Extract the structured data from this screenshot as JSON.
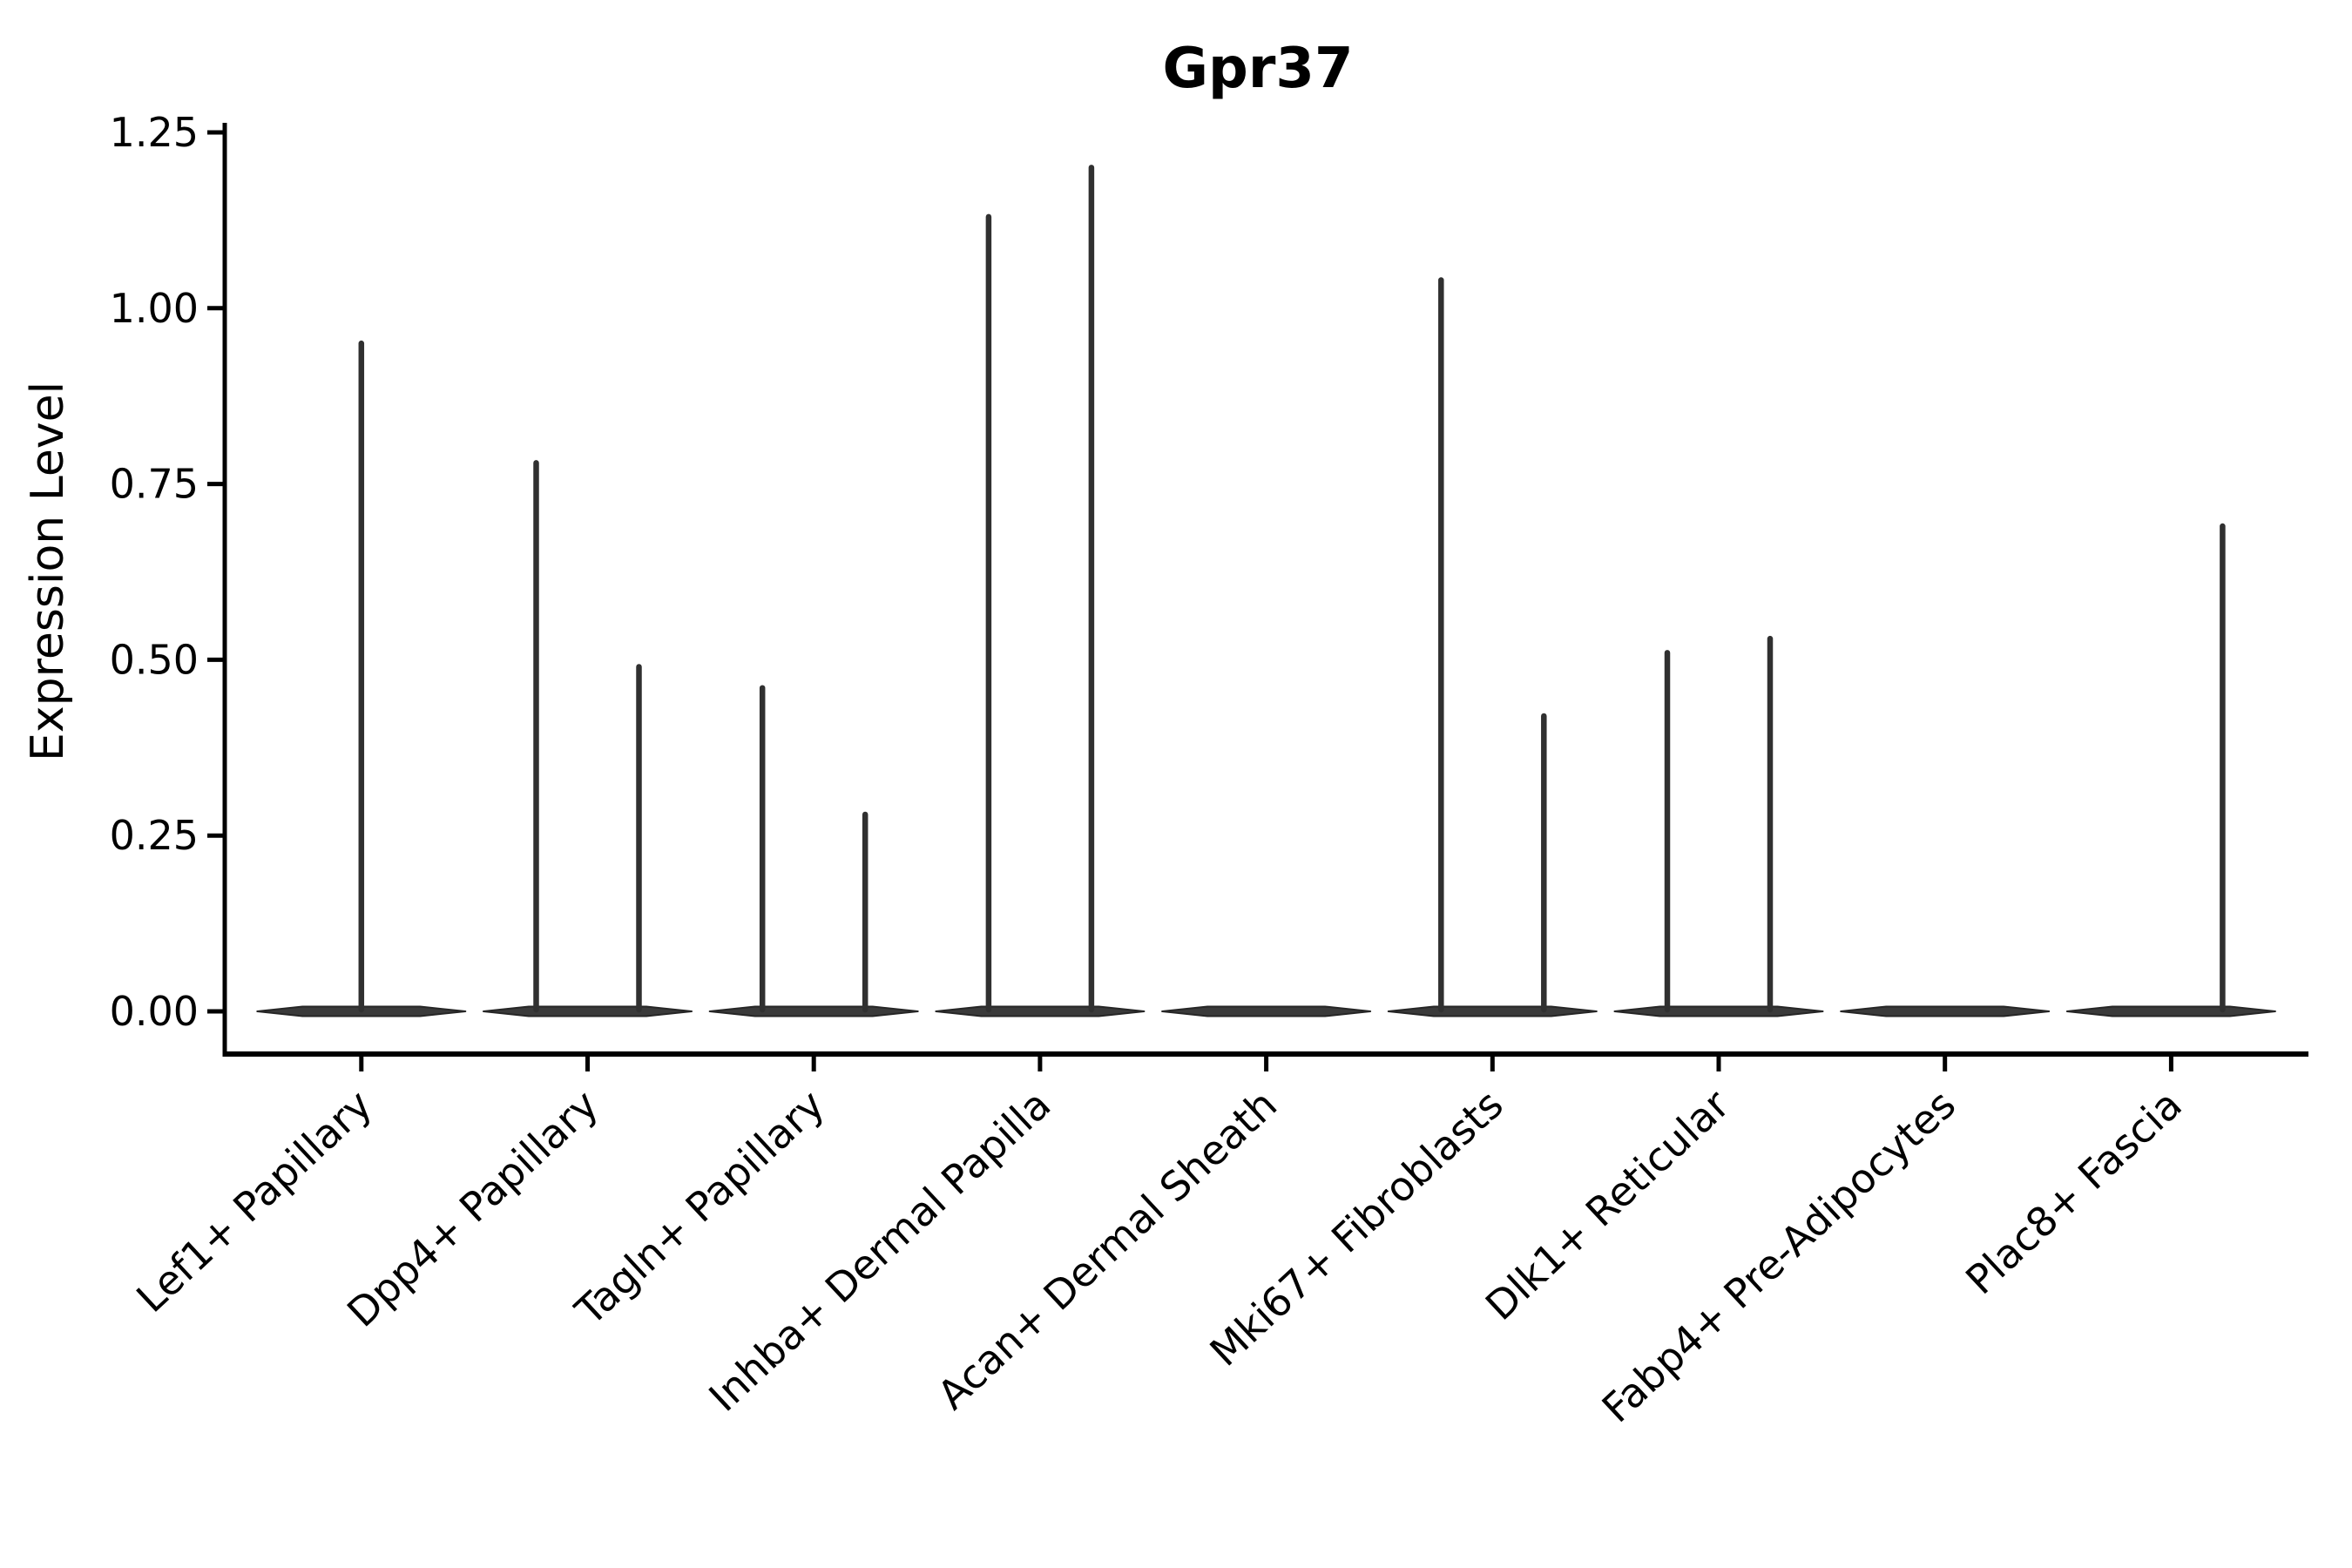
{
  "chart_data": {
    "type": "violin",
    "title": "Gpr37",
    "xlabel": "",
    "ylabel": "Expression Level",
    "ylim": [
      0,
      1.25
    ],
    "yticks": [
      "0.00",
      "0.25",
      "0.50",
      "0.75",
      "1.00",
      "1.25"
    ],
    "ytick_values": [
      0.0,
      0.25,
      0.5,
      0.75,
      1.0,
      1.25
    ],
    "categories": [
      "Lef1+ Papillary",
      "Dpp4+ Papillary",
      "Tagln+ Papillary",
      "Inhba+ Dermal Papilla",
      "Acan+ Dermal Sheath",
      "Mki67+ Fibroblasts",
      "Dlk1+ Reticular",
      "Fabp4+ Pre-Adipocytes",
      "Plac8+ Fascia"
    ],
    "series": [
      {
        "category": "Lef1+ Papillary",
        "spikes": [
          {
            "pos": "center",
            "max": 0.95
          }
        ]
      },
      {
        "category": "Dpp4+ Papillary",
        "spikes": [
          {
            "pos": "left",
            "max": 0.78
          },
          {
            "pos": "right",
            "max": 0.49
          }
        ]
      },
      {
        "category": "Tagln+ Papillary",
        "spikes": [
          {
            "pos": "left",
            "max": 0.46
          },
          {
            "pos": "right",
            "max": 0.28
          }
        ]
      },
      {
        "category": "Inhba+ Dermal Papilla",
        "spikes": [
          {
            "pos": "left",
            "max": 1.13
          },
          {
            "pos": "right",
            "max": 1.2
          }
        ]
      },
      {
        "category": "Acan+ Dermal Sheath",
        "spikes": []
      },
      {
        "category": "Mki67+ Fibroblasts",
        "spikes": [
          {
            "pos": "left",
            "max": 1.04
          },
          {
            "pos": "right",
            "max": 0.42
          }
        ]
      },
      {
        "category": "Dlk1+ Reticular",
        "spikes": [
          {
            "pos": "left",
            "max": 0.51
          },
          {
            "pos": "right",
            "max": 0.53
          }
        ]
      },
      {
        "category": "Fabp4+ Pre-Adipocytes",
        "spikes": []
      },
      {
        "category": "Plac8+ Fascia",
        "spikes": [
          {
            "pos": "right",
            "max": 0.69
          }
        ]
      }
    ],
    "layout": {
      "grid": false,
      "legend": "none",
      "x_label_rotation_deg": -43,
      "spines": [
        "left",
        "bottom"
      ]
    },
    "style": {
      "violin_color": "#3a3a3a",
      "violin_edge_color": "#262626",
      "spike_color": "#303030",
      "axis_color": "#000000",
      "text_color": "#000000",
      "background_color": "#ffffff"
    }
  }
}
